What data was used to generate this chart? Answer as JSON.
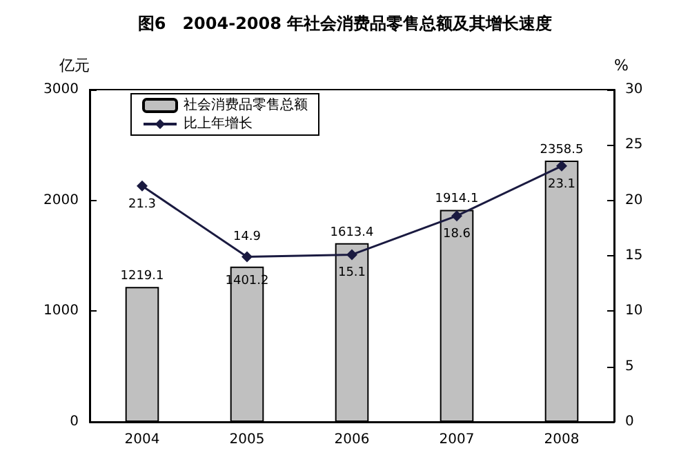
{
  "chart_data": {
    "type": "bar",
    "title": "图6　2004-2008 年社会消费品零售总额及其增长速度",
    "ylabel": "亿元",
    "y2label": "%",
    "categories": [
      "2004",
      "2005",
      "2006",
      "2007",
      "2008"
    ],
    "series": [
      {
        "name": "社会消费品零售总额",
        "color": "#c0c0c0",
        "values": [
          1219.1,
          1401.2,
          1613.4,
          1914.1,
          2358.5
        ]
      },
      {
        "name": "比上年增长",
        "type": "line",
        "axis": "y2",
        "color": "#1a1a40",
        "marker": "diamond",
        "values": [
          21.3,
          14.9,
          15.1,
          18.6,
          23.1
        ]
      }
    ],
    "ylim": [
      0,
      3000
    ],
    "yticks": [
      0,
      1000,
      2000,
      3000
    ],
    "y2lim": [
      0,
      30
    ],
    "y2ticks": [
      0,
      5,
      10,
      15,
      20,
      25,
      30
    ],
    "data_labels": true,
    "legend": "top left",
    "grid": false
  }
}
